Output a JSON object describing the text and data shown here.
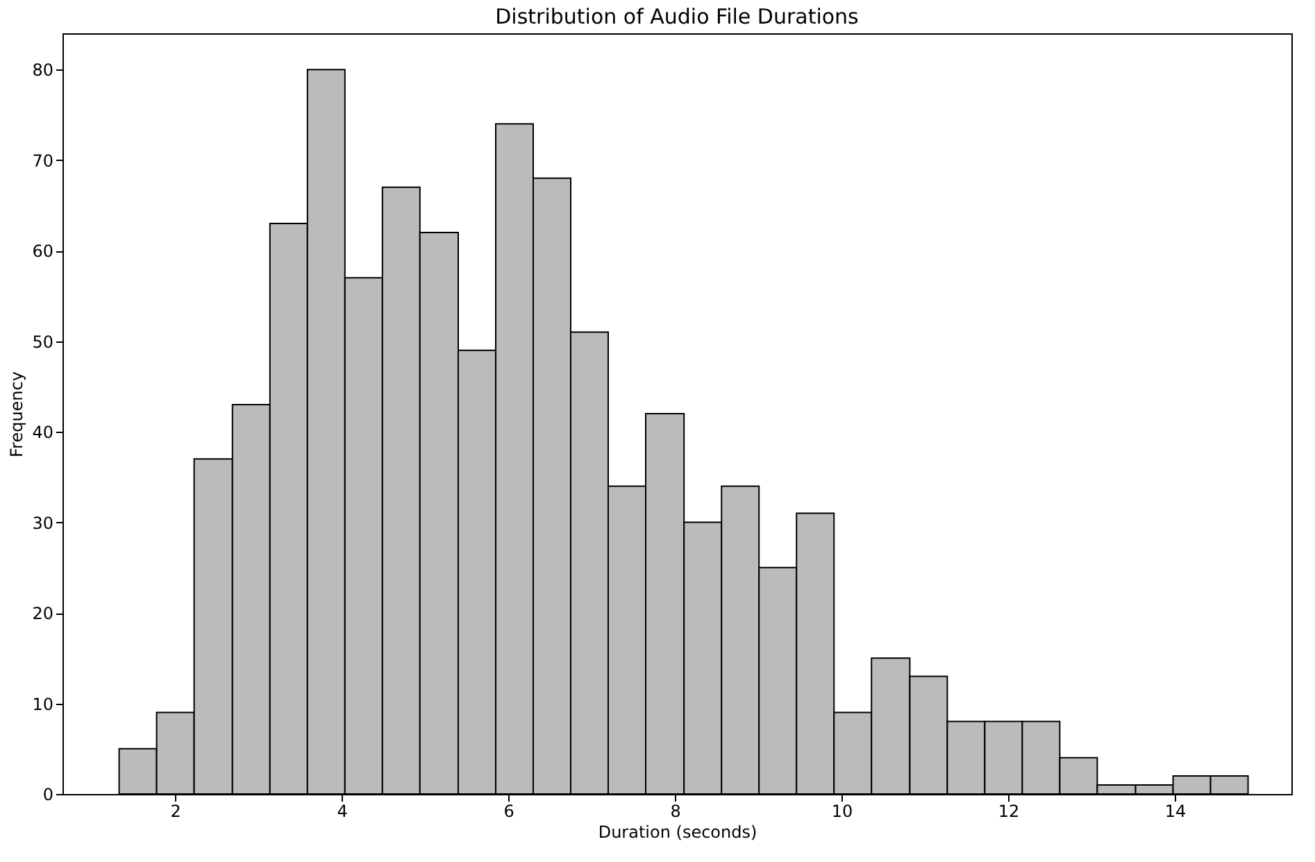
{
  "chart_data": {
    "type": "histogram",
    "title": "Distribution of Audio File Durations",
    "xlabel": "Duration (seconds)",
    "ylabel": "Frequency",
    "color": "#bbbbbb",
    "bins": [
      1.33,
      1.78,
      2.23,
      2.69,
      3.14,
      3.59,
      4.04,
      4.49,
      4.94,
      5.4,
      5.85,
      6.3,
      6.75,
      7.2,
      7.65,
      8.11,
      8.56,
      9.01,
      9.46,
      9.91,
      10.36,
      10.82,
      11.27,
      11.72,
      12.17,
      12.62,
      13.07,
      13.53,
      13.98,
      14.43,
      14.88
    ],
    "values": [
      5,
      9,
      37,
      43,
      63,
      80,
      57,
      67,
      62,
      49,
      74,
      68,
      51,
      34,
      42,
      30,
      34,
      25,
      31,
      9,
      15,
      13,
      8,
      8,
      8,
      4,
      1,
      1,
      2,
      2
    ],
    "xlim": [
      0.65,
      15.4
    ],
    "xticks": [
      2,
      4,
      6,
      8,
      10,
      12,
      14
    ],
    "ylim": [
      0,
      84
    ],
    "yticks": [
      0,
      10,
      20,
      30,
      40,
      50,
      60,
      70,
      80
    ],
    "grid": false
  }
}
